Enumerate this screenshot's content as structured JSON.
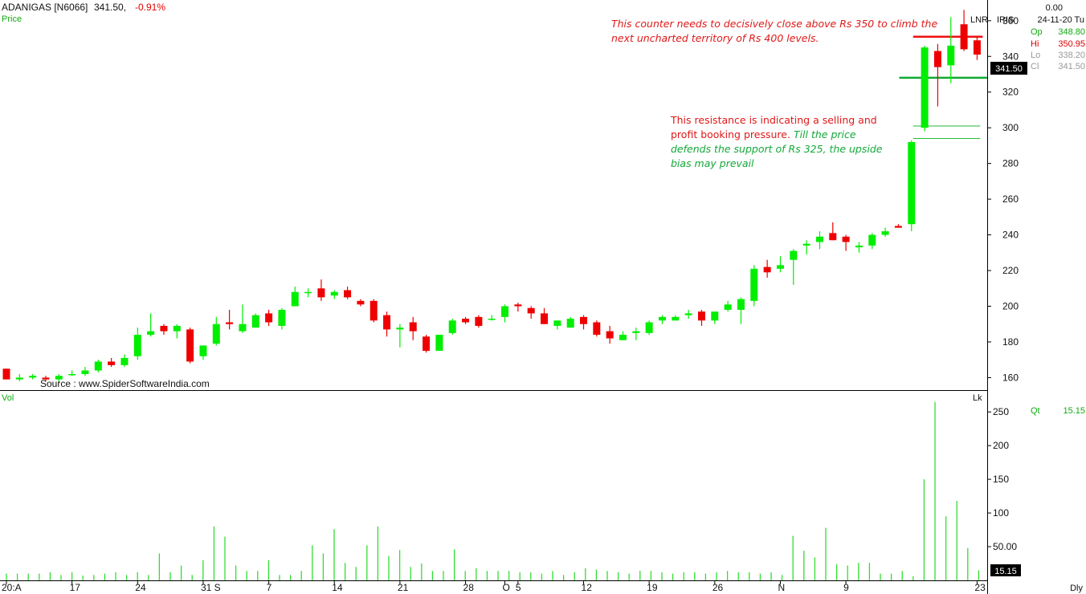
{
  "header": {
    "symbol": "ADANIGAS [N6066]",
    "last": "341.50,",
    "change": "-0.91%",
    "price_label": "Price",
    "source": "Source : www.SpiderSoftwareIndia.com",
    "right_value": "0.00",
    "date_label": "24-11-20 Tu",
    "lnr": "LNR",
    "iris": "IRIS"
  },
  "ohlc": {
    "op_label": "Op",
    "op_value": "348.80",
    "hi_label": "Hi",
    "hi_value": "350.95",
    "lo_label": "Lo",
    "lo_value": "338.20",
    "cl_label": "Cl",
    "cl_value": "341.50"
  },
  "price_tag": "341.50",
  "volume_panel": {
    "label": "Vol",
    "unit": "Lk",
    "qt_label": "Qt",
    "qt_value": "15.15",
    "tag": "15.15"
  },
  "annotations": {
    "top_red": [
      "This counter needs to decisively close above Rs 350 to climb the",
      "next uncharted territory of Rs 400 levels."
    ],
    "mid_red": [
      "This resistance is indicating a selling and",
      "profit booking pressure."
    ],
    "mid_green_inline": "Till the price",
    "mid_green": [
      "defends the support of Rs 325, the upside",
      "bias may prevail"
    ]
  },
  "footer": {
    "timeframe": "Dly"
  },
  "colors": {
    "up": "#00ee00",
    "down": "#ee0000",
    "resistance": "#ee1111",
    "support": "#11aa33",
    "vol": "#33dd33",
    "note_red": "#e01818",
    "note_green": "#13a83a"
  },
  "chart_data": {
    "type": "candlestick",
    "price_axis": {
      "ylim": [
        153,
        368
      ],
      "ticks": [
        160,
        180,
        200,
        220,
        240,
        260,
        280,
        300,
        320,
        340,
        360
      ]
    },
    "volume_axis": {
      "ylim": [
        0,
        280
      ],
      "ticks": [
        50,
        100,
        150,
        200,
        250
      ],
      "tick_labels": [
        "50.00",
        "100",
        "150",
        "200",
        "250"
      ]
    },
    "x_tick_labels": [
      {
        "label": "20:A",
        "i": 0
      },
      {
        "label": "17",
        "i": 5
      },
      {
        "label": "24",
        "i": 10
      },
      {
        "label": "31 S",
        "i": 15
      },
      {
        "label": "7",
        "i": 20
      },
      {
        "label": "14",
        "i": 25
      },
      {
        "label": "21",
        "i": 30
      },
      {
        "label": "28",
        "i": 35
      },
      {
        "label": "O",
        "i": 38
      },
      {
        "label": "5",
        "i": 39
      },
      {
        "label": "12",
        "i": 44
      },
      {
        "label": "19",
        "i": 49
      },
      {
        "label": "26",
        "i": 54
      },
      {
        "label": "N",
        "i": 59
      },
      {
        "label": "9",
        "i": 64
      },
      {
        "label": "23",
        "i": 74
      }
    ],
    "resistance_level": 351,
    "support_level": 328,
    "gap_levels": [
      301,
      294
    ],
    "candles": [
      [
        165,
        165,
        159,
        159
      ],
      [
        159,
        162,
        158,
        160
      ],
      [
        160,
        162,
        159,
        161
      ],
      [
        160,
        161,
        158,
        159
      ],
      [
        159,
        162,
        157,
        161
      ],
      [
        162,
        164,
        161,
        162
      ],
      [
        162,
        166,
        161,
        164
      ],
      [
        164,
        170,
        163,
        169
      ],
      [
        169,
        171,
        166,
        167
      ],
      [
        167,
        173,
        166,
        171
      ],
      [
        172,
        188,
        170,
        184
      ],
      [
        184,
        196,
        183,
        186
      ],
      [
        189,
        190,
        184,
        186
      ],
      [
        186,
        190,
        182,
        189
      ],
      [
        187,
        188,
        168,
        169
      ],
      [
        172,
        178,
        170,
        178
      ],
      [
        179,
        194,
        178,
        190
      ],
      [
        191,
        198,
        187,
        190
      ],
      [
        186,
        201,
        185,
        190
      ],
      [
        188,
        196,
        188,
        195
      ],
      [
        196,
        198,
        189,
        191
      ],
      [
        189,
        199,
        187,
        198
      ],
      [
        200,
        211,
        200,
        208
      ],
      [
        208,
        210,
        205,
        208
      ],
      [
        210,
        215,
        203,
        205
      ],
      [
        206,
        209,
        204,
        208
      ],
      [
        209,
        211,
        204,
        205
      ],
      [
        203,
        204,
        200,
        201
      ],
      [
        203,
        204,
        191,
        192
      ],
      [
        195,
        197,
        183,
        187
      ],
      [
        187,
        190,
        177,
        188
      ],
      [
        191,
        194,
        181,
        186
      ],
      [
        183,
        184,
        174,
        175
      ],
      [
        175,
        184,
        175,
        184
      ],
      [
        185,
        193,
        184,
        192
      ],
      [
        193,
        194,
        190,
        191
      ],
      [
        194,
        195,
        188,
        189
      ],
      [
        193,
        195,
        192,
        193
      ],
      [
        194,
        201,
        191,
        200
      ],
      [
        201,
        202,
        197,
        200
      ],
      [
        199,
        200,
        193,
        196
      ],
      [
        196,
        199,
        190,
        190
      ],
      [
        189,
        192,
        187,
        192
      ],
      [
        188,
        194,
        188,
        193
      ],
      [
        194,
        195,
        187,
        190
      ],
      [
        191,
        192,
        183,
        184
      ],
      [
        186,
        189,
        179,
        182
      ],
      [
        181,
        186,
        181,
        184
      ],
      [
        185,
        188,
        181,
        186
      ],
      [
        185,
        192,
        184,
        191
      ],
      [
        192,
        195,
        190,
        194
      ],
      [
        192,
        195,
        192,
        194
      ],
      [
        195,
        198,
        193,
        196
      ],
      [
        197,
        198,
        189,
        192
      ],
      [
        192,
        197,
        190,
        197
      ],
      [
        198,
        203,
        197,
        201
      ],
      [
        198,
        205,
        190,
        204
      ],
      [
        203,
        223,
        200,
        221
      ],
      [
        222,
        226,
        216,
        219
      ],
      [
        221,
        228,
        219,
        223
      ],
      [
        226,
        232,
        212,
        231
      ],
      [
        234,
        237,
        229,
        235
      ],
      [
        236,
        242,
        232,
        239
      ],
      [
        241,
        247,
        237,
        237
      ],
      [
        239,
        240,
        231,
        236
      ],
      [
        233,
        236,
        230,
        234
      ],
      [
        234,
        241,
        232,
        240
      ],
      [
        240,
        244,
        239,
        242
      ],
      [
        245,
        246,
        244,
        244
      ],
      [
        246,
        293,
        242,
        292
      ],
      [
        300,
        346,
        298,
        345
      ],
      [
        343,
        347,
        312,
        334
      ],
      [
        335,
        362,
        325,
        346
      ],
      [
        358,
        366,
        343,
        344
      ],
      [
        349,
        351,
        338,
        341
      ]
    ],
    "volume": [
      10,
      10,
      10,
      10,
      12,
      8,
      12,
      7,
      8,
      10,
      12,
      8,
      12,
      8,
      40,
      12,
      22,
      8,
      30,
      80,
      65,
      22,
      14,
      14,
      30,
      8,
      8,
      14,
      52,
      40,
      76,
      26,
      20,
      52,
      80,
      36,
      45,
      20,
      25,
      14,
      14,
      46,
      14,
      18,
      14,
      14,
      14,
      12,
      12,
      10,
      14,
      8,
      12,
      18,
      16,
      14,
      12,
      10,
      14,
      14,
      12,
      10,
      12,
      12,
      10,
      12,
      14,
      12,
      12,
      10,
      12,
      8,
      66,
      44,
      34,
      78,
      24,
      22,
      26,
      26
    ],
    "volume_tail": [
      10,
      10,
      14,
      6,
      150,
      265,
      95,
      118,
      48,
      15
    ]
  }
}
